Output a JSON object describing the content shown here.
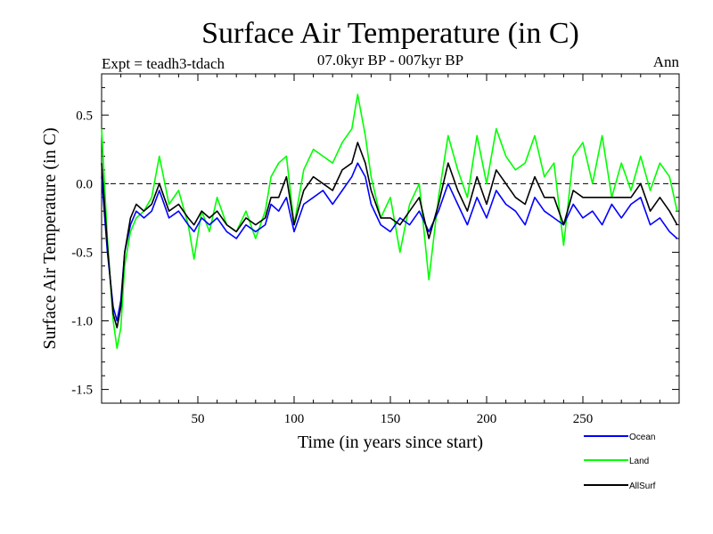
{
  "chart_data": {
    "type": "line",
    "title": "Surface Air Temperature (in C)",
    "subtitle": "07.0kyr BP - 007kyr BP",
    "left_label": "Expt = teadh3-tdach",
    "right_label": "Ann",
    "xlabel": "Time (in years since start)",
    "ylabel": "Surface Air Temperature (in C)",
    "xlim": [
      0,
      300
    ],
    "ylim": [
      -1.6,
      0.8
    ],
    "xticks": [
      50,
      100,
      150,
      200,
      250
    ],
    "yticks": [
      -1.5,
      -1.0,
      -0.5,
      0.0,
      0.5
    ],
    "ytick_labels": [
      "-1.5",
      "-1.0",
      "-0.5",
      "0.0",
      "0.5"
    ],
    "reference_line": 0.0,
    "legend_position": "bottom-right",
    "series": [
      {
        "name": "Ocean",
        "color": "#0000ff",
        "x": [
          0,
          3,
          6,
          8,
          10,
          12,
          15,
          18,
          22,
          26,
          30,
          35,
          40,
          45,
          48,
          52,
          56,
          60,
          65,
          70,
          75,
          80,
          85,
          88,
          92,
          96,
          100,
          105,
          110,
          115,
          120,
          125,
          130,
          133,
          137,
          140,
          145,
          150,
          155,
          160,
          165,
          170,
          175,
          180,
          185,
          190,
          195,
          200,
          205,
          210,
          215,
          220,
          225,
          230,
          235,
          240,
          245,
          250,
          255,
          260,
          265,
          270,
          275,
          280,
          285,
          290,
          295,
          299
        ],
        "values": [
          0.05,
          -0.5,
          -0.9,
          -1.0,
          -0.85,
          -0.5,
          -0.3,
          -0.2,
          -0.25,
          -0.2,
          -0.05,
          -0.25,
          -0.2,
          -0.3,
          -0.35,
          -0.25,
          -0.3,
          -0.25,
          -0.35,
          -0.4,
          -0.3,
          -0.35,
          -0.3,
          -0.15,
          -0.2,
          -0.1,
          -0.35,
          -0.15,
          -0.1,
          -0.05,
          -0.15,
          -0.05,
          0.05,
          0.15,
          0.05,
          -0.15,
          -0.3,
          -0.35,
          -0.25,
          -0.3,
          -0.2,
          -0.35,
          -0.2,
          0.0,
          -0.15,
          -0.3,
          -0.1,
          -0.25,
          -0.05,
          -0.15,
          -0.2,
          -0.3,
          -0.1,
          -0.2,
          -0.25,
          -0.3,
          -0.15,
          -0.25,
          -0.2,
          -0.3,
          -0.15,
          -0.25,
          -0.15,
          -0.1,
          -0.3,
          -0.25,
          -0.35,
          -0.4
        ]
      },
      {
        "name": "Land",
        "color": "#00ff00",
        "x": [
          0,
          3,
          6,
          8,
          10,
          12,
          15,
          18,
          22,
          26,
          30,
          35,
          40,
          45,
          48,
          52,
          56,
          60,
          65,
          70,
          75,
          80,
          85,
          88,
          92,
          96,
          100,
          105,
          110,
          115,
          120,
          125,
          130,
          133,
          137,
          140,
          145,
          150,
          155,
          160,
          165,
          170,
          175,
          180,
          185,
          190,
          195,
          200,
          205,
          210,
          215,
          220,
          225,
          230,
          235,
          240,
          245,
          250,
          255,
          260,
          265,
          270,
          275,
          280,
          285,
          290,
          295,
          299
        ],
        "values": [
          0.4,
          -0.4,
          -1.0,
          -1.2,
          -1.05,
          -0.6,
          -0.35,
          -0.25,
          -0.2,
          -0.1,
          0.2,
          -0.15,
          -0.05,
          -0.3,
          -0.55,
          -0.2,
          -0.35,
          -0.1,
          -0.3,
          -0.35,
          -0.2,
          -0.4,
          -0.2,
          0.05,
          0.15,
          0.2,
          -0.3,
          0.1,
          0.25,
          0.2,
          0.15,
          0.3,
          0.4,
          0.65,
          0.35,
          0.05,
          -0.25,
          -0.1,
          -0.5,
          -0.15,
          0.0,
          -0.7,
          -0.1,
          0.35,
          0.1,
          -0.1,
          0.35,
          0.0,
          0.4,
          0.2,
          0.1,
          0.15,
          0.35,
          0.05,
          0.15,
          -0.45,
          0.2,
          0.3,
          0.0,
          0.35,
          -0.1,
          0.15,
          -0.05,
          0.2,
          -0.05,
          0.15,
          0.05,
          -0.2
        ]
      },
      {
        "name": "AllSurf",
        "color": "#000000",
        "x": [
          0,
          3,
          6,
          8,
          10,
          12,
          15,
          18,
          22,
          26,
          30,
          35,
          40,
          45,
          48,
          52,
          56,
          60,
          65,
          70,
          75,
          80,
          85,
          88,
          92,
          96,
          100,
          105,
          110,
          115,
          120,
          125,
          130,
          133,
          137,
          140,
          145,
          150,
          155,
          160,
          165,
          170,
          175,
          180,
          185,
          190,
          195,
          200,
          205,
          210,
          215,
          220,
          225,
          230,
          235,
          240,
          245,
          250,
          255,
          260,
          265,
          270,
          275,
          280,
          285,
          290,
          295,
          299
        ],
        "values": [
          0.15,
          -0.45,
          -0.95,
          -1.05,
          -0.9,
          -0.5,
          -0.25,
          -0.15,
          -0.2,
          -0.15,
          0.0,
          -0.2,
          -0.15,
          -0.25,
          -0.3,
          -0.2,
          -0.25,
          -0.2,
          -0.3,
          -0.35,
          -0.25,
          -0.3,
          -0.25,
          -0.1,
          -0.1,
          0.05,
          -0.3,
          -0.05,
          0.05,
          0.0,
          -0.05,
          0.1,
          0.15,
          0.3,
          0.15,
          -0.05,
          -0.25,
          -0.25,
          -0.3,
          -0.2,
          -0.1,
          -0.4,
          -0.15,
          0.15,
          -0.05,
          -0.2,
          0.05,
          -0.15,
          0.1,
          0.0,
          -0.1,
          -0.15,
          0.05,
          -0.1,
          -0.1,
          -0.3,
          -0.05,
          -0.1,
          -0.1,
          -0.1,
          -0.1,
          -0.1,
          -0.1,
          0.0,
          -0.2,
          -0.1,
          -0.2,
          -0.3
        ]
      }
    ]
  }
}
